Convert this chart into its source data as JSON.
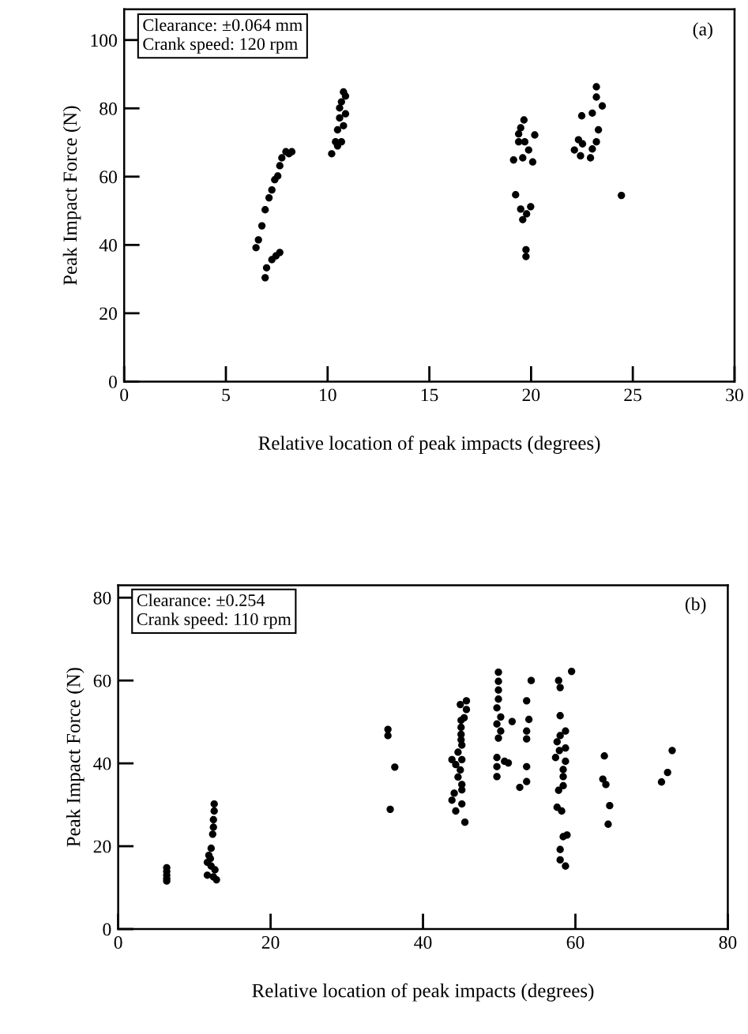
{
  "chart_data": [
    {
      "type": "scatter",
      "xlabel": "Relative location of peak impacts (degrees)",
      "ylabel": "Peak Impact Force (N)",
      "annotations": [
        "Clearance: ±0.064 mm\nCrank speed: 120 rpm",
        "(a)"
      ],
      "xlim": [
        0,
        30
      ],
      "ylim": [
        0,
        109
      ],
      "xticks": [
        0,
        5,
        10,
        15,
        20,
        25,
        30
      ],
      "yticks": [
        0,
        20,
        40,
        60,
        80,
        100
      ],
      "grid": false,
      "marker": "circle",
      "series": [
        {
          "color": "#000000",
          "x": [
            6.48,
            6.6,
            6.77,
            6.93,
            7.12,
            7.26,
            7.4,
            7.55,
            7.65,
            7.75,
            7.95,
            8.1,
            8.24,
            6.93,
            7.0,
            7.26,
            7.46,
            7.65,
            10.2,
            10.39,
            10.49,
            10.59,
            10.59,
            10.68,
            10.78,
            10.88,
            10.78,
            10.68,
            10.49,
            10.88,
            19.14,
            19.65,
            19.49,
            19.39,
            20.18,
            19.69,
            19.39,
            19.88,
            19.59,
            20.08,
            19.24,
            19.49,
            19.98,
            19.78,
            19.59,
            19.75,
            19.75,
            23.21,
            23.21,
            23.5,
            23.01,
            22.49,
            23.31,
            23.21,
            22.33,
            22.53,
            22.13,
            22.43,
            22.92,
            23.01,
            24.44
          ],
          "values": [
            39.2,
            41.5,
            45.6,
            50.3,
            53.8,
            56.1,
            59.1,
            60.2,
            63.2,
            65.5,
            67.3,
            66.7,
            67.3,
            30.4,
            33.3,
            35.7,
            36.8,
            37.8,
            66.7,
            70.2,
            73.7,
            77.2,
            80.1,
            81.9,
            84.8,
            83.6,
            74.9,
            70.2,
            69.0,
            78.4,
            64.9,
            76.6,
            74.3,
            72.5,
            72.2,
            70.2,
            70.2,
            67.8,
            65.5,
            64.3,
            54.7,
            50.5,
            51.2,
            49.1,
            47.4,
            38.6,
            36.6,
            86.3,
            83.3,
            80.7,
            78.6,
            77.8,
            73.7,
            70.2,
            70.8,
            69.6,
            67.8,
            66.1,
            65.5,
            68.1,
            54.5
          ]
        }
      ]
    },
    {
      "type": "scatter",
      "xlabel": "Relative location of peak impacts (degrees)",
      "ylabel": "Peak Impact Force (N)",
      "annotations": [
        "Clearance: ±0.254\nCrank speed: 110 rpm",
        "(b)"
      ],
      "xlim": [
        0,
        80
      ],
      "ylim": [
        0,
        83
      ],
      "xticks": [
        0,
        20,
        40,
        60,
        80
      ],
      "yticks": [
        0,
        20,
        40,
        60,
        80
      ],
      "grid": false,
      "marker": "circle",
      "series": [
        {
          "color": "#000000",
          "x": [
            6.37,
            6.37,
            6.37,
            6.37,
            6.37,
            12.6,
            12.6,
            12.5,
            12.5,
            12.4,
            12.2,
            11.9,
            11.7,
            12.2,
            12.7,
            11.7,
            12.5,
            12.9,
            12.1,
            35.4,
            35.4,
            36.3,
            35.7,
            45.0,
            45.0,
            45.0,
            45.0,
            44.9,
            45.7,
            45.7,
            45.4,
            45.1,
            44.6,
            43.8,
            45.1,
            44.3,
            44.9,
            44.6,
            45.1,
            45.1,
            44.1,
            43.8,
            45.1,
            44.3,
            45.5,
            49.9,
            49.9,
            49.9,
            49.9,
            49.7,
            50.2,
            49.7,
            50.2,
            49.9,
            51.7,
            49.7,
            49.7,
            49.7,
            50.7,
            51.2,
            54.2,
            53.6,
            53.9,
            53.6,
            53.6,
            53.6,
            53.6,
            52.7,
            57.8,
            58.0,
            58.0,
            58.7,
            58.0,
            57.6,
            58.7,
            57.9,
            57.4,
            58.7,
            58.4,
            58.4,
            58.4,
            57.8,
            57.6,
            58.2,
            58.9,
            58.4,
            58.0,
            58.0,
            58.7,
            63.8,
            63.6,
            64.0,
            64.5,
            64.3,
            71.3,
            72.1,
            72.7,
            59.5
          ],
          "values": [
            14.8,
            13.9,
            13.0,
            12.2,
            11.6,
            30.2,
            28.5,
            26.4,
            24.6,
            22.9,
            19.5,
            17.8,
            16.1,
            15.2,
            14.3,
            13.0,
            12.6,
            11.9,
            17.0,
            48.2,
            46.7,
            39.1,
            28.9,
            50.4,
            48.7,
            47.0,
            45.7,
            54.2,
            55.1,
            53.0,
            51.0,
            44.4,
            42.7,
            40.9,
            40.9,
            39.7,
            38.4,
            36.7,
            34.9,
            33.6,
            32.8,
            31.1,
            30.2,
            28.5,
            25.8,
            62.0,
            59.8,
            57.7,
            55.5,
            53.4,
            51.2,
            49.5,
            47.8,
            46.1,
            50.1,
            41.4,
            39.2,
            36.8,
            40.5,
            40.1,
            60.0,
            55.1,
            50.6,
            47.8,
            45.9,
            39.2,
            35.6,
            34.2,
            60.0,
            58.3,
            51.5,
            47.8,
            46.7,
            45.2,
            43.7,
            43.1,
            41.4,
            40.5,
            38.5,
            36.8,
            34.6,
            33.5,
            29.4,
            28.5,
            22.7,
            22.3,
            19.2,
            16.7,
            15.2,
            41.8,
            36.2,
            34.9,
            29.8,
            25.3,
            35.5,
            37.8,
            43.1,
            62.2
          ]
        }
      ]
    }
  ]
}
